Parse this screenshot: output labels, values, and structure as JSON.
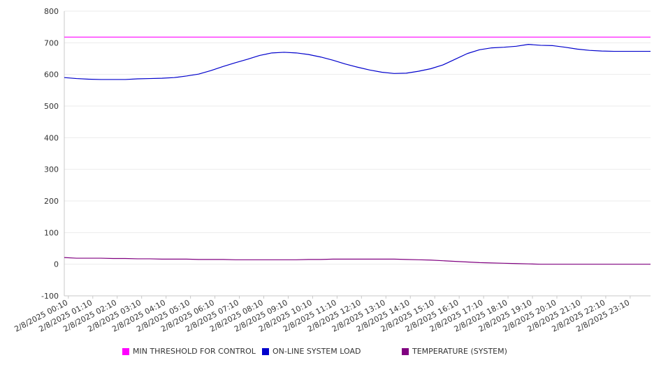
{
  "chart_data": {
    "type": "line",
    "ylim": [
      -100,
      800
    ],
    "yticks": [
      "800",
      "700",
      "600",
      "500",
      "400",
      "300",
      "200",
      "100",
      "0",
      "-100"
    ],
    "x_tick_labels": [
      "2/8/2025 00:10",
      "2/8/2025 01:10",
      "2/8/2025 02:10",
      "2/8/2025 03:10",
      "2/8/2025 04:10",
      "2/8/2025 05:10",
      "2/8/2025 06:10",
      "2/8/2025 07:10",
      "2/8/2025 08:10",
      "2/8/2025 09:10",
      "2/8/2025 10:10",
      "2/8/2025 11:10",
      "2/8/2025 12:10",
      "2/8/2025 13:10",
      "2/8/2025 14:10",
      "2/8/2025 15:10",
      "2/8/2025 16:10",
      "2/8/2025 17:10",
      "2/8/2025 18:10",
      "2/8/2025 19:10",
      "2/8/2025 20:10",
      "2/8/2025 21:10",
      "2/8/2025 22:10",
      "2/8/2025 23:10"
    ],
    "x_hours": [
      0,
      0.5,
      1,
      1.5,
      2,
      2.5,
      3,
      3.5,
      4,
      4.5,
      5,
      5.5,
      6,
      6.5,
      7,
      7.5,
      8,
      8.5,
      9,
      9.5,
      10,
      10.5,
      11,
      11.5,
      12,
      12.5,
      13,
      13.5,
      14,
      14.5,
      15,
      15.5,
      16,
      16.5,
      17,
      17.5,
      18,
      18.5,
      19,
      19.5,
      20,
      20.5,
      21,
      21.5,
      22,
      22.5,
      23,
      23.5,
      24
    ],
    "x_range_hours": [
      0,
      24
    ],
    "grid": true,
    "legend_position": "bottom",
    "series": [
      {
        "name": "MIN THRESHOLD FOR CONTROL",
        "color": "#ff00ff",
        "values": [
          718,
          718,
          718,
          718,
          718,
          718,
          718,
          718,
          718,
          718,
          718,
          718,
          718,
          718,
          718,
          718,
          718,
          718,
          718,
          718,
          718,
          718,
          718,
          718,
          718,
          718,
          718,
          718,
          718,
          718,
          718,
          718,
          718,
          718,
          718,
          718,
          718,
          718,
          718,
          718,
          718,
          718,
          718,
          718,
          718,
          718,
          718,
          718,
          718
        ]
      },
      {
        "name": "ON-LINE SYSTEM LOAD",
        "color": "#0000cc",
        "values": [
          590,
          587,
          585,
          584,
          584,
          584,
          586,
          587,
          588,
          590,
          595,
          601,
          612,
          625,
          637,
          648,
          660,
          668,
          670,
          668,
          663,
          655,
          645,
          633,
          623,
          614,
          607,
          603,
          604,
          610,
          618,
          630,
          648,
          666,
          678,
          684,
          686,
          689,
          695,
          692,
          691,
          686,
          680,
          676,
          674,
          673,
          673,
          673,
          673
        ]
      },
      {
        "name": "TEMPERATURE (SYSTEM)",
        "color": "#800080",
        "values": [
          21,
          19,
          19,
          19,
          18,
          18,
          17,
          17,
          16,
          16,
          16,
          15,
          15,
          15,
          14,
          14,
          14,
          14,
          14,
          14,
          15,
          15,
          16,
          16,
          16,
          16,
          16,
          16,
          15,
          14,
          13,
          11,
          9,
          7,
          5,
          4,
          3,
          2,
          1,
          0,
          0,
          0,
          0,
          0,
          0,
          0,
          0,
          0,
          0
        ]
      }
    ]
  }
}
